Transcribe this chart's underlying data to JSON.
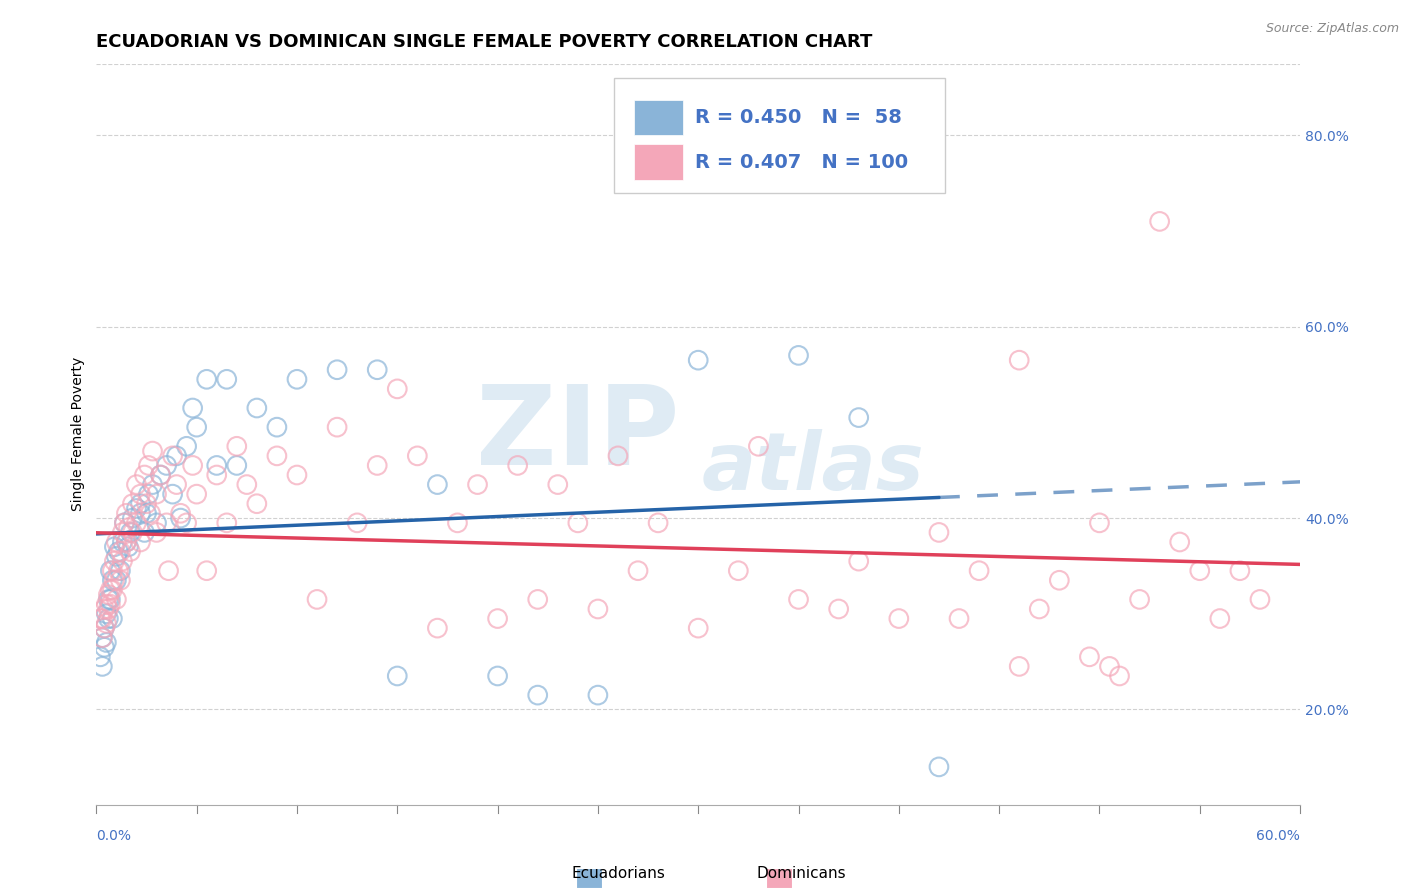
{
  "title": "ECUADORIAN VS DOMINICAN SINGLE FEMALE POVERTY CORRELATION CHART",
  "source": "Source: ZipAtlas.com",
  "ylabel": "Single Female Poverty",
  "legend_labels": [
    "Ecuadorians",
    "Dominicans"
  ],
  "r_values": [
    0.45,
    0.407
  ],
  "n_values": [
    58,
    100
  ],
  "scatter_blue": [
    [
      0.002,
      0.255
    ],
    [
      0.003,
      0.275
    ],
    [
      0.003,
      0.245
    ],
    [
      0.004,
      0.285
    ],
    [
      0.004,
      0.265
    ],
    [
      0.005,
      0.3
    ],
    [
      0.005,
      0.27
    ],
    [
      0.006,
      0.315
    ],
    [
      0.006,
      0.295
    ],
    [
      0.007,
      0.345
    ],
    [
      0.007,
      0.315
    ],
    [
      0.008,
      0.335
    ],
    [
      0.008,
      0.295
    ],
    [
      0.009,
      0.37
    ],
    [
      0.01,
      0.36
    ],
    [
      0.01,
      0.335
    ],
    [
      0.011,
      0.365
    ],
    [
      0.012,
      0.345
    ],
    [
      0.013,
      0.375
    ],
    [
      0.014,
      0.395
    ],
    [
      0.015,
      0.375
    ],
    [
      0.016,
      0.37
    ],
    [
      0.017,
      0.385
    ],
    [
      0.018,
      0.4
    ],
    [
      0.02,
      0.41
    ],
    [
      0.022,
      0.415
    ],
    [
      0.022,
      0.405
    ],
    [
      0.024,
      0.385
    ],
    [
      0.025,
      0.405
    ],
    [
      0.026,
      0.425
    ],
    [
      0.028,
      0.435
    ],
    [
      0.03,
      0.395
    ],
    [
      0.032,
      0.445
    ],
    [
      0.035,
      0.455
    ],
    [
      0.038,
      0.425
    ],
    [
      0.04,
      0.465
    ],
    [
      0.042,
      0.4
    ],
    [
      0.045,
      0.475
    ],
    [
      0.048,
      0.515
    ],
    [
      0.05,
      0.495
    ],
    [
      0.055,
      0.545
    ],
    [
      0.06,
      0.455
    ],
    [
      0.065,
      0.545
    ],
    [
      0.07,
      0.455
    ],
    [
      0.08,
      0.515
    ],
    [
      0.09,
      0.495
    ],
    [
      0.1,
      0.545
    ],
    [
      0.12,
      0.555
    ],
    [
      0.14,
      0.555
    ],
    [
      0.15,
      0.235
    ],
    [
      0.17,
      0.435
    ],
    [
      0.2,
      0.235
    ],
    [
      0.22,
      0.215
    ],
    [
      0.25,
      0.215
    ],
    [
      0.3,
      0.565
    ],
    [
      0.35,
      0.57
    ],
    [
      0.38,
      0.505
    ],
    [
      0.42,
      0.14
    ]
  ],
  "scatter_pink": [
    [
      0.002,
      0.295
    ],
    [
      0.003,
      0.295
    ],
    [
      0.003,
      0.275
    ],
    [
      0.004,
      0.305
    ],
    [
      0.004,
      0.285
    ],
    [
      0.005,
      0.31
    ],
    [
      0.005,
      0.29
    ],
    [
      0.006,
      0.32
    ],
    [
      0.006,
      0.305
    ],
    [
      0.007,
      0.325
    ],
    [
      0.007,
      0.31
    ],
    [
      0.008,
      0.345
    ],
    [
      0.008,
      0.325
    ],
    [
      0.009,
      0.355
    ],
    [
      0.009,
      0.335
    ],
    [
      0.01,
      0.315
    ],
    [
      0.01,
      0.375
    ],
    [
      0.011,
      0.345
    ],
    [
      0.012,
      0.365
    ],
    [
      0.012,
      0.335
    ],
    [
      0.013,
      0.385
    ],
    [
      0.013,
      0.355
    ],
    [
      0.014,
      0.395
    ],
    [
      0.015,
      0.375
    ],
    [
      0.015,
      0.405
    ],
    [
      0.016,
      0.39
    ],
    [
      0.017,
      0.365
    ],
    [
      0.018,
      0.415
    ],
    [
      0.018,
      0.385
    ],
    [
      0.02,
      0.435
    ],
    [
      0.02,
      0.395
    ],
    [
      0.022,
      0.425
    ],
    [
      0.022,
      0.375
    ],
    [
      0.024,
      0.445
    ],
    [
      0.025,
      0.415
    ],
    [
      0.026,
      0.455
    ],
    [
      0.027,
      0.405
    ],
    [
      0.028,
      0.47
    ],
    [
      0.03,
      0.425
    ],
    [
      0.03,
      0.385
    ],
    [
      0.032,
      0.445
    ],
    [
      0.035,
      0.395
    ],
    [
      0.036,
      0.345
    ],
    [
      0.038,
      0.465
    ],
    [
      0.04,
      0.435
    ],
    [
      0.042,
      0.405
    ],
    [
      0.045,
      0.395
    ],
    [
      0.048,
      0.455
    ],
    [
      0.05,
      0.425
    ],
    [
      0.055,
      0.345
    ],
    [
      0.06,
      0.445
    ],
    [
      0.065,
      0.395
    ],
    [
      0.07,
      0.475
    ],
    [
      0.075,
      0.435
    ],
    [
      0.08,
      0.415
    ],
    [
      0.09,
      0.465
    ],
    [
      0.1,
      0.445
    ],
    [
      0.11,
      0.315
    ],
    [
      0.12,
      0.495
    ],
    [
      0.13,
      0.395
    ],
    [
      0.14,
      0.455
    ],
    [
      0.15,
      0.535
    ],
    [
      0.16,
      0.465
    ],
    [
      0.17,
      0.285
    ],
    [
      0.18,
      0.395
    ],
    [
      0.19,
      0.435
    ],
    [
      0.2,
      0.295
    ],
    [
      0.21,
      0.455
    ],
    [
      0.22,
      0.315
    ],
    [
      0.23,
      0.435
    ],
    [
      0.24,
      0.395
    ],
    [
      0.25,
      0.305
    ],
    [
      0.26,
      0.465
    ],
    [
      0.27,
      0.345
    ],
    [
      0.28,
      0.395
    ],
    [
      0.3,
      0.285
    ],
    [
      0.32,
      0.345
    ],
    [
      0.33,
      0.475
    ],
    [
      0.35,
      0.315
    ],
    [
      0.37,
      0.305
    ],
    [
      0.38,
      0.355
    ],
    [
      0.4,
      0.295
    ],
    [
      0.42,
      0.385
    ],
    [
      0.43,
      0.295
    ],
    [
      0.44,
      0.345
    ],
    [
      0.46,
      0.565
    ],
    [
      0.47,
      0.305
    ],
    [
      0.48,
      0.335
    ],
    [
      0.5,
      0.395
    ],
    [
      0.52,
      0.315
    ],
    [
      0.53,
      0.71
    ],
    [
      0.54,
      0.375
    ],
    [
      0.55,
      0.345
    ],
    [
      0.56,
      0.295
    ],
    [
      0.57,
      0.345
    ],
    [
      0.58,
      0.315
    ],
    [
      0.495,
      0.255
    ],
    [
      0.505,
      0.245
    ],
    [
      0.51,
      0.235
    ],
    [
      0.46,
      0.245
    ]
  ],
  "color_blue": "#8ab4d8",
  "color_pink": "#f4a7b9",
  "color_blue_line": "#2563a8",
  "color_pink_line": "#e0405a",
  "xlim": [
    0.0,
    0.6
  ],
  "ylim": [
    0.1,
    0.875
  ],
  "yticks": [
    0.2,
    0.4,
    0.6,
    0.8
  ],
  "ytick_labels": [
    "20.0%",
    "40.0%",
    "60.0%",
    "80.0%"
  ],
  "background_color": "#ffffff",
  "grid_color": "#cccccc",
  "title_fontsize": 13,
  "axis_label_fontsize": 10,
  "tick_fontsize": 10,
  "legend_fontsize": 14
}
